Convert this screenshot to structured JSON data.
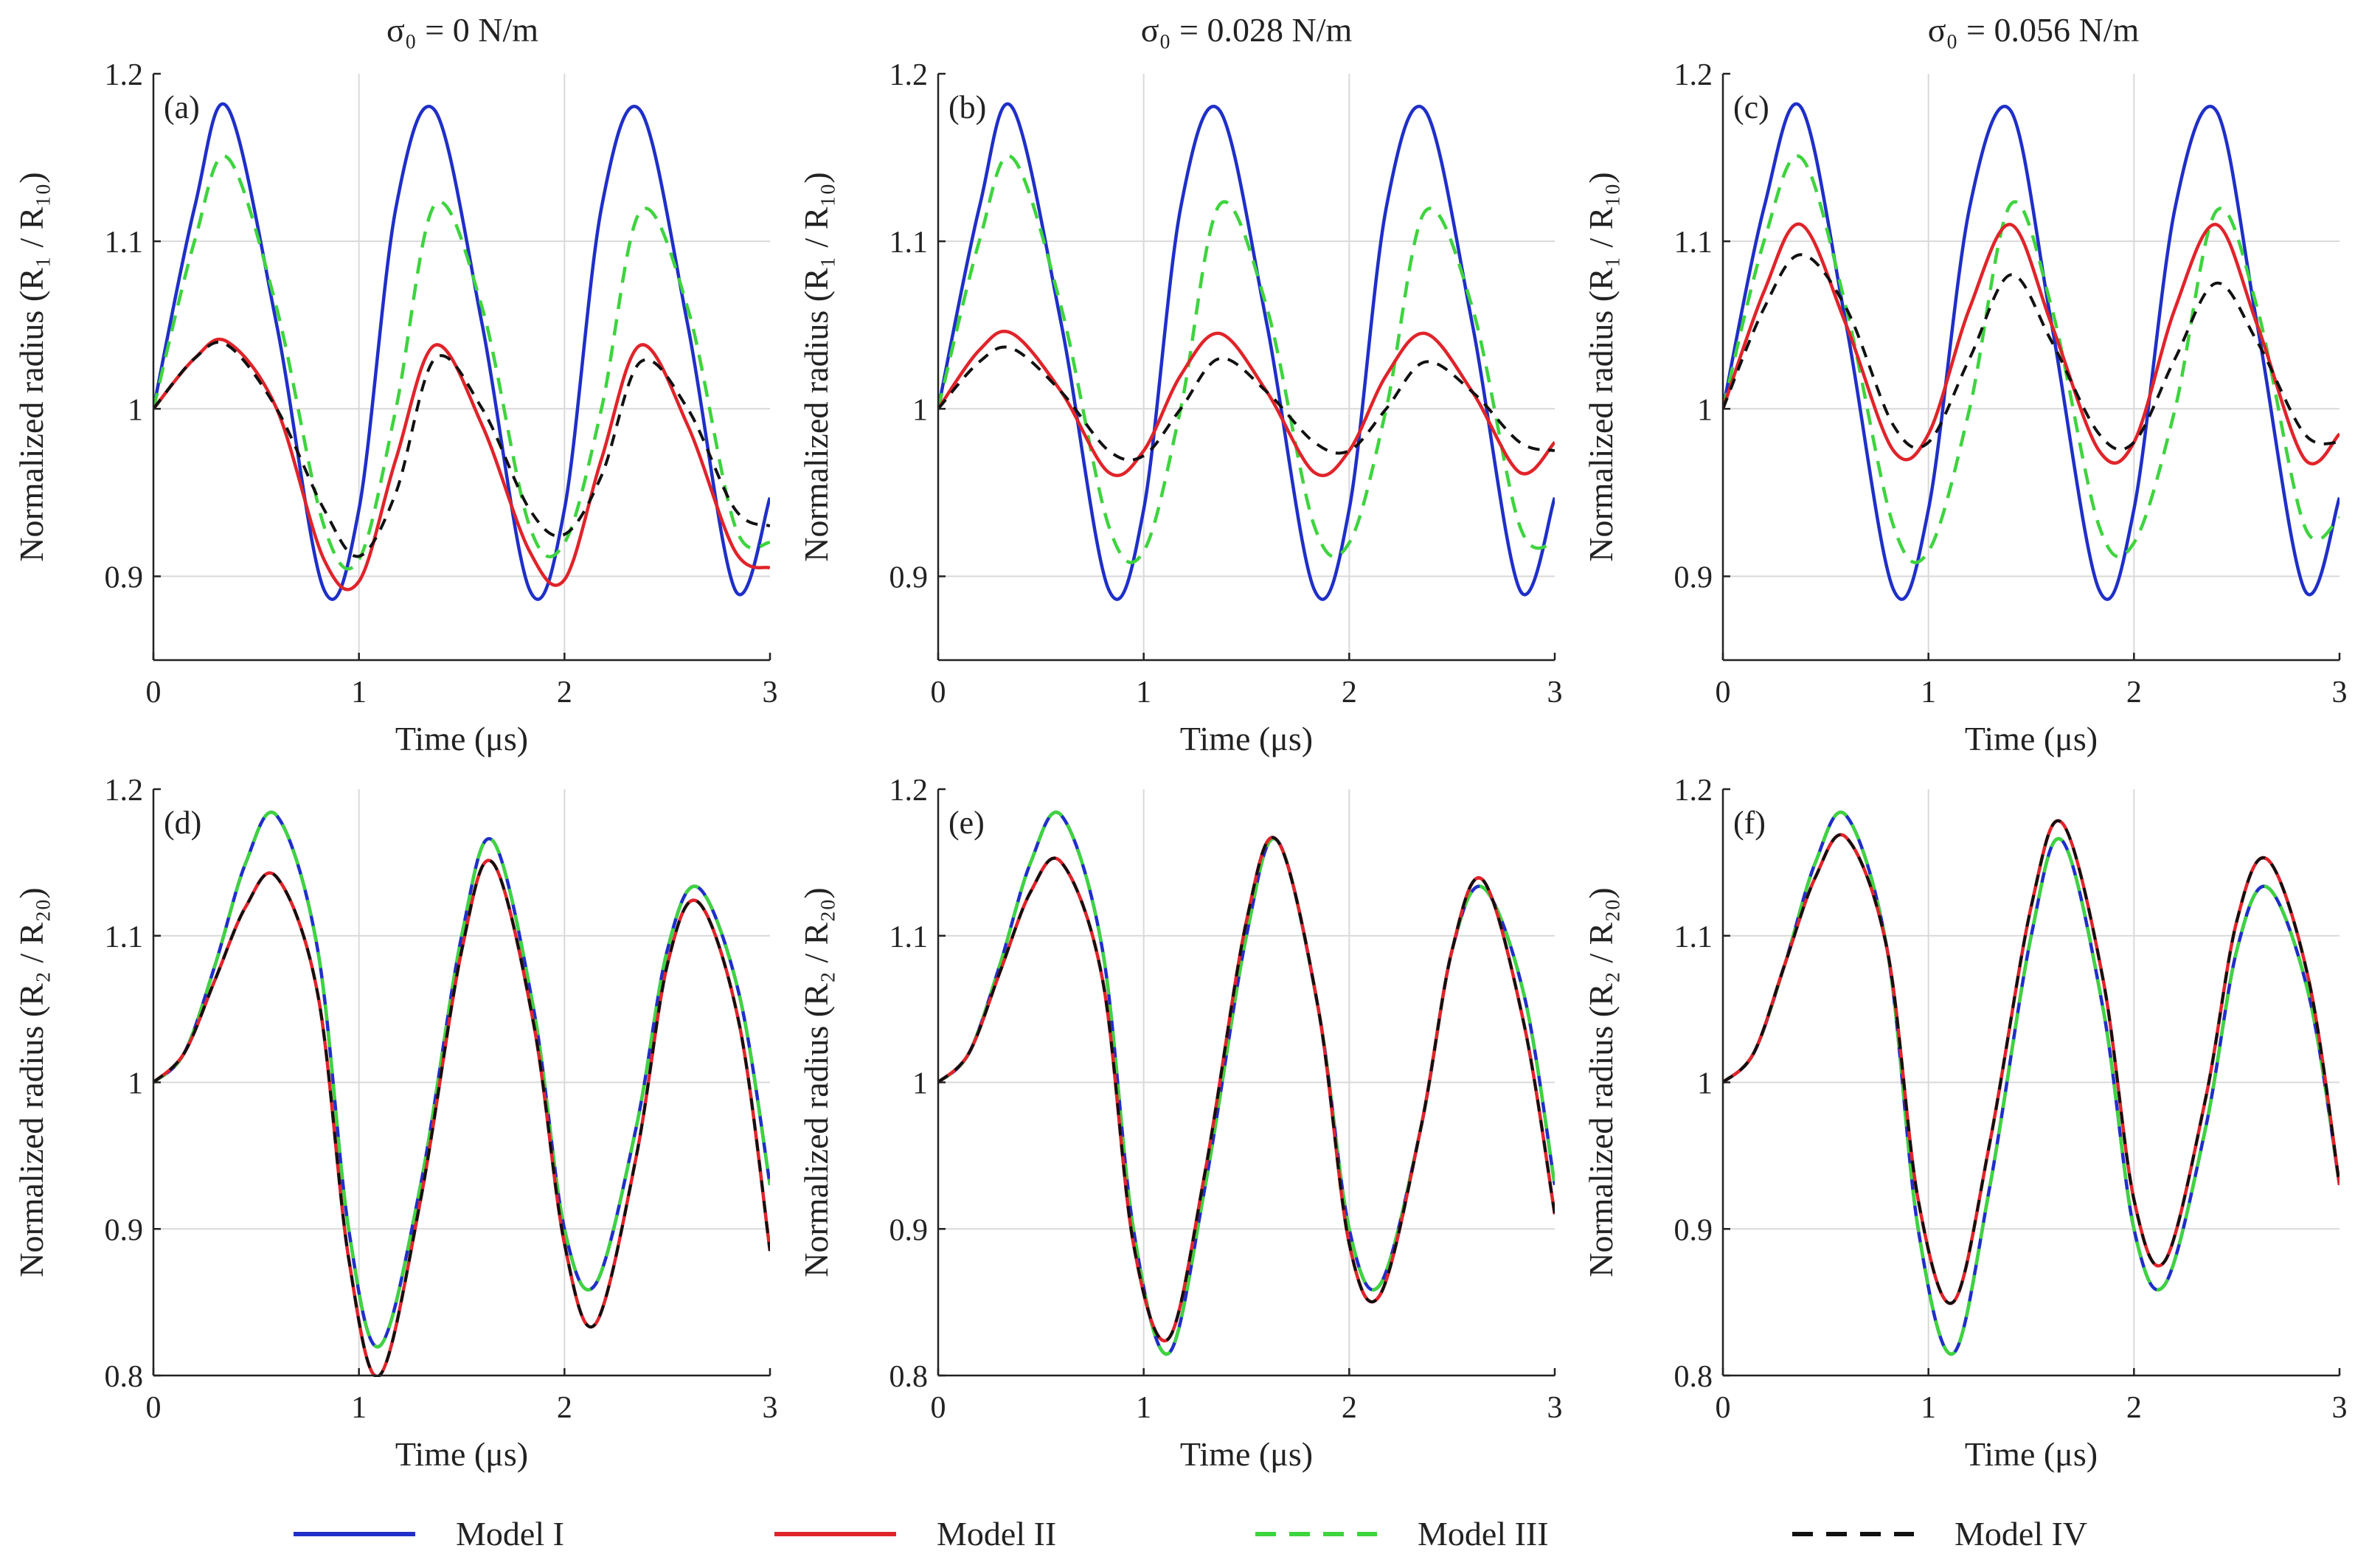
{
  "colors": {
    "model_I": "#1f2fc8",
    "model_II": "#e0242a",
    "model_III": "#3ed43e",
    "model_IV": "#111111",
    "grid": "#d9d9d9",
    "axis": "#222222"
  },
  "column_titles": [
    "σ₀ = 0 N/m",
    "σ₀ = 0.028 N/m",
    "σ₀ = 0.056 N/m"
  ],
  "legend": [
    {
      "label": "Model  I",
      "color": "#1f2fc8",
      "dash": false
    },
    {
      "label": "Model  II",
      "color": "#e0242a",
      "dash": false
    },
    {
      "label": "Model  III",
      "color": "#3ed43e",
      "dash": true
    },
    {
      "label": "Model  IV",
      "color": "#111111",
      "dash": true
    }
  ],
  "chart_data": [
    {
      "panel": "(a)",
      "type": "line",
      "title": "σ₀ = 0 N/m",
      "xlabel": "Time (μs)",
      "ylabel": "Normalized radius (R₁ / R₁₀)",
      "xlim": [
        0,
        3
      ],
      "ylim": [
        0.85,
        1.2
      ],
      "xticks": [
        0,
        1,
        2,
        3
      ],
      "yticks": [
        0.9,
        1,
        1.1,
        1.2
      ],
      "ytick_labels": [
        "0.9",
        "1",
        "1.1",
        "1.2"
      ],
      "grid": true,
      "x": [
        0,
        0.2,
        0.36,
        0.6,
        0.83,
        1.0,
        1.18,
        1.37,
        1.6,
        1.83,
        2.0,
        2.18,
        2.37,
        2.6,
        2.83,
        3.0
      ],
      "series": [
        {
          "name": "Model I",
          "values": [
            1.0,
            1.12,
            1.18,
            1.05,
            0.892,
            0.94,
            1.12,
            1.178,
            1.05,
            0.892,
            0.94,
            1.12,
            1.178,
            1.05,
            0.892,
            0.947
          ]
        },
        {
          "name": "Model II",
          "values": [
            1.0,
            1.03,
            1.04,
            1.0,
            0.91,
            0.897,
            0.97,
            1.038,
            0.99,
            0.915,
            0.898,
            0.97,
            1.038,
            0.99,
            0.915,
            0.905
          ]
        },
        {
          "name": "Model III",
          "values": [
            1.0,
            1.1,
            1.15,
            1.06,
            0.93,
            0.91,
            1.0,
            1.122,
            1.06,
            0.93,
            0.92,
            1.0,
            1.118,
            1.06,
            0.93,
            0.92
          ]
        },
        {
          "name": "Model IV",
          "values": [
            1.0,
            1.03,
            1.038,
            1.0,
            0.94,
            0.912,
            0.95,
            1.03,
            1.0,
            0.94,
            0.925,
            0.96,
            1.028,
            1.0,
            0.94,
            0.93
          ]
        }
      ]
    },
    {
      "panel": "(b)",
      "type": "line",
      "title": "σ₀ = 0.028 N/m",
      "xlabel": "Time (μs)",
      "ylabel": "Normalized radius (R₁ / R₁₀)",
      "xlim": [
        0,
        3
      ],
      "ylim": [
        0.85,
        1.2
      ],
      "xticks": [
        0,
        1,
        2,
        3
      ],
      "yticks": [
        0.9,
        1,
        1.1,
        1.2
      ],
      "ytick_labels": [
        "0.9",
        "1",
        "1.1",
        "1.2"
      ],
      "grid": true,
      "x": [
        0,
        0.2,
        0.36,
        0.6,
        0.83,
        1.0,
        1.18,
        1.37,
        1.6,
        1.83,
        2.0,
        2.18,
        2.37,
        2.6,
        2.83,
        3.0
      ],
      "series": [
        {
          "name": "Model I",
          "values": [
            1.0,
            1.12,
            1.18,
            1.05,
            0.892,
            0.94,
            1.12,
            1.178,
            1.05,
            0.892,
            0.94,
            1.12,
            1.178,
            1.05,
            0.892,
            0.947
          ]
        },
        {
          "name": "Model II",
          "values": [
            1.0,
            1.035,
            1.045,
            1.01,
            0.962,
            0.975,
            1.02,
            1.045,
            1.01,
            0.962,
            0.975,
            1.02,
            1.045,
            1.01,
            0.962,
            0.98
          ]
        },
        {
          "name": "Model III",
          "values": [
            1.0,
            1.1,
            1.15,
            1.06,
            0.93,
            0.915,
            1.0,
            1.122,
            1.06,
            0.93,
            0.92,
            1.0,
            1.118,
            1.06,
            0.93,
            0.92
          ]
        },
        {
          "name": "Model IV",
          "values": [
            1.0,
            1.028,
            1.036,
            1.01,
            0.975,
            0.972,
            1.0,
            1.03,
            1.01,
            0.98,
            0.975,
            1.0,
            1.028,
            1.01,
            0.98,
            0.975
          ]
        }
      ]
    },
    {
      "panel": "(c)",
      "type": "line",
      "title": "σ₀ = 0.056 N/m",
      "xlabel": "Time (μs)",
      "ylabel": "Normalized radius (R₁ / R₁₀)",
      "xlim": [
        0,
        3
      ],
      "ylim": [
        0.85,
        1.2
      ],
      "xticks": [
        0,
        1,
        2,
        3
      ],
      "yticks": [
        0.9,
        1,
        1.1,
        1.2
      ],
      "ytick_labels": [
        "0.9",
        "1",
        "1.1",
        "1.2"
      ],
      "grid": true,
      "x": [
        0,
        0.2,
        0.38,
        0.6,
        0.83,
        1.0,
        1.2,
        1.4,
        1.6,
        1.83,
        2.0,
        2.2,
        2.4,
        2.6,
        2.83,
        3.0
      ],
      "series": [
        {
          "name": "Model I",
          "values": [
            1.0,
            1.12,
            1.18,
            1.05,
            0.892,
            0.94,
            1.12,
            1.178,
            1.05,
            0.892,
            0.94,
            1.12,
            1.178,
            1.05,
            0.892,
            0.947
          ]
        },
        {
          "name": "Model II",
          "values": [
            1.0,
            1.07,
            1.11,
            1.05,
            0.975,
            0.985,
            1.06,
            1.11,
            1.05,
            0.975,
            0.98,
            1.06,
            1.11,
            1.05,
            0.97,
            0.985
          ]
        },
        {
          "name": "Model III",
          "values": [
            1.0,
            1.1,
            1.15,
            1.06,
            0.93,
            0.915,
            1.0,
            1.122,
            1.06,
            0.93,
            0.92,
            1.0,
            1.118,
            1.06,
            0.93,
            0.935
          ]
        },
        {
          "name": "Model IV",
          "values": [
            1.0,
            1.06,
            1.092,
            1.06,
            0.99,
            0.98,
            1.03,
            1.08,
            1.04,
            0.985,
            0.98,
            1.03,
            1.075,
            1.04,
            0.985,
            0.98
          ]
        }
      ]
    },
    {
      "panel": "(d)",
      "type": "line",
      "xlabel": "Time (μs)",
      "ylabel": "Normalized radius (R₂ / R₂₀)",
      "xlim": [
        0,
        3
      ],
      "ylim": [
        0.8,
        1.2
      ],
      "xticks": [
        0,
        1,
        2,
        3
      ],
      "yticks": [
        0.8,
        0.9,
        1,
        1.1,
        1.2
      ],
      "ytick_labels": [
        "0.8",
        "0.9",
        "1",
        "1.1",
        "1.2"
      ],
      "grid": true,
      "x": [
        0,
        0.15,
        0.3,
        0.45,
        0.6,
        0.8,
        0.95,
        1.1,
        1.3,
        1.5,
        1.65,
        1.85,
        2.0,
        2.15,
        2.35,
        2.5,
        2.65,
        2.85,
        3.0
      ],
      "series": [
        {
          "name": "Model I",
          "values": [
            1.0,
            1.02,
            1.08,
            1.15,
            1.182,
            1.09,
            0.9,
            0.82,
            0.93,
            1.1,
            1.165,
            1.05,
            0.9,
            0.862,
            0.97,
            1.09,
            1.133,
            1.06,
            0.93
          ]
        },
        {
          "name": "Model II",
          "values": [
            1.0,
            1.02,
            1.07,
            1.12,
            1.14,
            1.06,
            0.88,
            0.8,
            0.92,
            1.09,
            1.15,
            1.04,
            0.89,
            0.835,
            0.95,
            1.08,
            1.123,
            1.04,
            0.885
          ]
        },
        {
          "name": "Model III",
          "values": [
            1.0,
            1.02,
            1.08,
            1.15,
            1.182,
            1.09,
            0.9,
            0.82,
            0.93,
            1.1,
            1.165,
            1.05,
            0.9,
            0.862,
            0.97,
            1.09,
            1.133,
            1.06,
            0.93
          ]
        },
        {
          "name": "Model IV",
          "values": [
            1.0,
            1.02,
            1.07,
            1.12,
            1.14,
            1.06,
            0.88,
            0.8,
            0.92,
            1.09,
            1.15,
            1.04,
            0.89,
            0.835,
            0.95,
            1.08,
            1.123,
            1.04,
            0.885
          ]
        }
      ]
    },
    {
      "panel": "(e)",
      "type": "line",
      "xlabel": "Time (μs)",
      "ylabel": "Normalized radius (R₂ / R₂₀)",
      "xlim": [
        0,
        3
      ],
      "ylim": [
        0.8,
        1.2
      ],
      "xticks": [
        0,
        1,
        2,
        3
      ],
      "yticks": [
        0.8,
        0.9,
        1,
        1.1,
        1.2
      ],
      "ytick_labels": [
        "0.8",
        "0.9",
        "1",
        "1.1",
        "1.2"
      ],
      "grid": true,
      "x": [
        0,
        0.15,
        0.3,
        0.45,
        0.6,
        0.8,
        0.95,
        1.12,
        1.3,
        1.5,
        1.65,
        1.85,
        2.0,
        2.15,
        2.35,
        2.5,
        2.65,
        2.85,
        3.0
      ],
      "series": [
        {
          "name": "Model I",
          "values": [
            1.0,
            1.02,
            1.08,
            1.15,
            1.182,
            1.09,
            0.9,
            0.815,
            0.93,
            1.1,
            1.165,
            1.05,
            0.9,
            0.862,
            0.97,
            1.09,
            1.133,
            1.06,
            0.93
          ]
        },
        {
          "name": "Model II",
          "values": [
            1.0,
            1.02,
            1.075,
            1.13,
            1.15,
            1.07,
            0.89,
            0.825,
            0.94,
            1.11,
            1.165,
            1.05,
            0.89,
            0.855,
            0.97,
            1.09,
            1.138,
            1.04,
            0.91
          ]
        },
        {
          "name": "Model III",
          "values": [
            1.0,
            1.02,
            1.08,
            1.15,
            1.182,
            1.09,
            0.9,
            0.815,
            0.93,
            1.1,
            1.165,
            1.05,
            0.9,
            0.862,
            0.97,
            1.09,
            1.133,
            1.06,
            0.93
          ]
        },
        {
          "name": "Model IV",
          "values": [
            1.0,
            1.02,
            1.075,
            1.13,
            1.15,
            1.07,
            0.89,
            0.825,
            0.94,
            1.11,
            1.165,
            1.05,
            0.89,
            0.855,
            0.97,
            1.09,
            1.138,
            1.04,
            0.91
          ]
        }
      ]
    },
    {
      "panel": "(f)",
      "type": "line",
      "xlabel": "Time (μs)",
      "ylabel": "Normalized radius (R₂ / R₂₀)",
      "xlim": [
        0,
        3
      ],
      "ylim": [
        0.8,
        1.2
      ],
      "xticks": [
        0,
        1,
        2,
        3
      ],
      "yticks": [
        0.8,
        0.9,
        1,
        1.1,
        1.2
      ],
      "ytick_labels": [
        "0.8",
        "0.9",
        "1",
        "1.1",
        "1.2"
      ],
      "grid": true,
      "x": [
        0,
        0.15,
        0.3,
        0.45,
        0.6,
        0.8,
        0.95,
        1.12,
        1.3,
        1.5,
        1.65,
        1.85,
        2.0,
        2.15,
        2.35,
        2.5,
        2.65,
        2.85,
        3.0
      ],
      "series": [
        {
          "name": "Model I",
          "values": [
            1.0,
            1.02,
            1.08,
            1.15,
            1.182,
            1.09,
            0.9,
            0.815,
            0.93,
            1.1,
            1.165,
            1.05,
            0.9,
            0.862,
            0.97,
            1.09,
            1.133,
            1.06,
            0.93
          ]
        },
        {
          "name": "Model II",
          "values": [
            1.0,
            1.02,
            1.08,
            1.14,
            1.167,
            1.09,
            0.92,
            0.85,
            0.96,
            1.12,
            1.177,
            1.07,
            0.92,
            0.878,
            0.99,
            1.11,
            1.152,
            1.07,
            0.93
          ]
        },
        {
          "name": "Model III",
          "values": [
            1.0,
            1.02,
            1.08,
            1.15,
            1.182,
            1.09,
            0.9,
            0.815,
            0.93,
            1.1,
            1.165,
            1.05,
            0.9,
            0.862,
            0.97,
            1.09,
            1.133,
            1.06,
            0.93
          ]
        },
        {
          "name": "Model IV",
          "values": [
            1.0,
            1.02,
            1.08,
            1.14,
            1.167,
            1.09,
            0.92,
            0.85,
            0.96,
            1.12,
            1.177,
            1.07,
            0.92,
            0.878,
            0.99,
            1.11,
            1.152,
            1.07,
            0.93
          ]
        }
      ]
    }
  ]
}
